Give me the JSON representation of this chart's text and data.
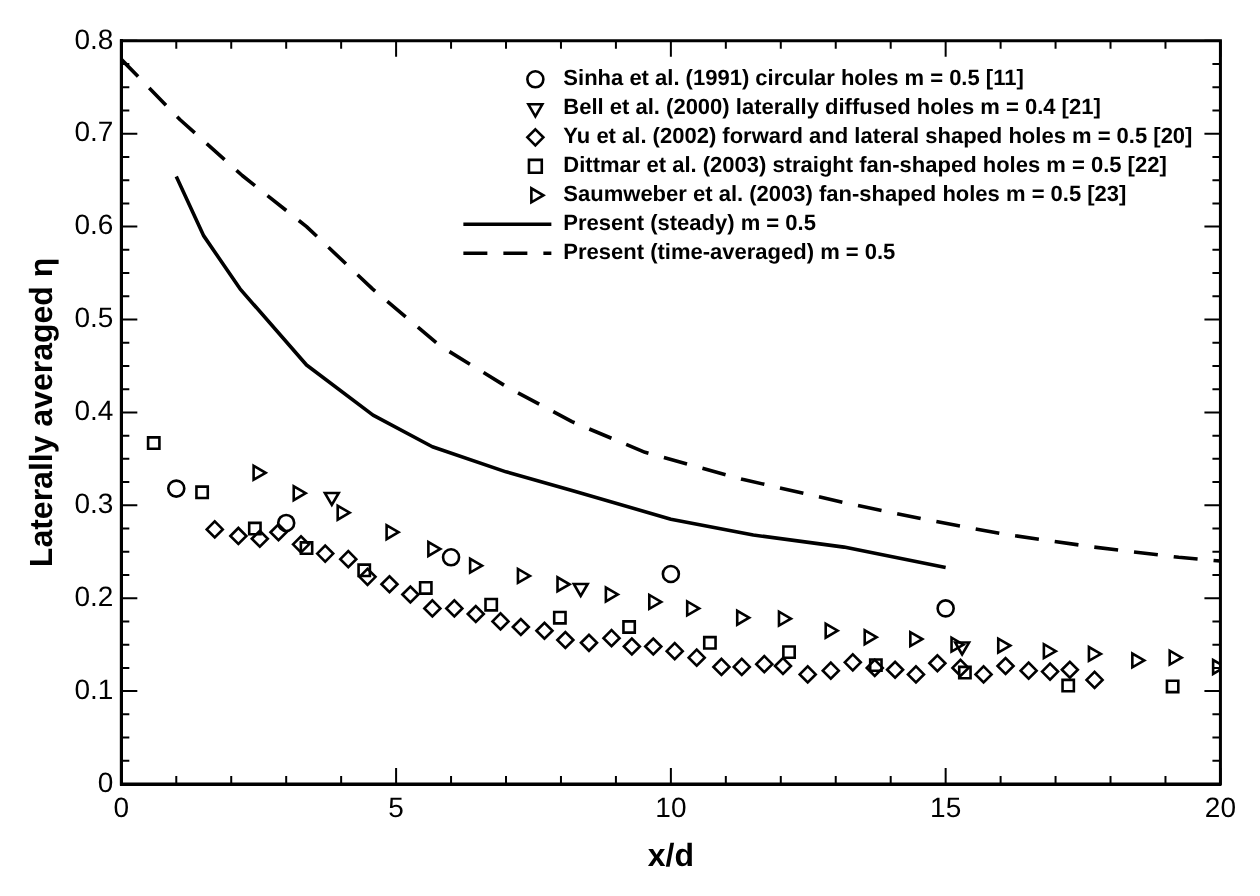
{
  "chart_data": {
    "type": "scatter",
    "xlabel": "x/d",
    "ylabel": "Laterally averaged η",
    "legend": "top right",
    "grid": false,
    "xlim": [
      0,
      20
    ],
    "xticks": [
      0,
      {
        "value": 1,
        "label": null
      },
      {
        "value": 2,
        "label": null
      },
      {
        "value": 3,
        "label": null
      },
      {
        "value": 4,
        "label": null
      },
      5,
      {
        "value": 6,
        "label": null
      },
      {
        "value": 7,
        "label": null
      },
      {
        "value": 8,
        "label": null
      },
      {
        "value": 9,
        "label": null
      },
      10,
      {
        "value": 11,
        "label": null
      },
      {
        "value": 12,
        "label": null
      },
      {
        "value": 13,
        "label": null
      },
      {
        "value": 14,
        "label": null
      },
      15,
      {
        "value": 16,
        "label": null
      },
      {
        "value": 17,
        "label": null
      },
      {
        "value": 18,
        "label": null
      },
      {
        "value": 19,
        "label": null
      },
      20
    ],
    "ylim": [
      0,
      0.8
    ],
    "yticks": [
      0,
      {
        "value": 0.025,
        "label": null
      },
      {
        "value": 0.05,
        "label": null
      },
      {
        "value": 0.075,
        "label": null
      },
      0.1,
      {
        "value": 0.125,
        "label": null
      },
      {
        "value": 0.15,
        "label": null
      },
      {
        "value": 0.175,
        "label": null
      },
      0.2,
      {
        "value": 0.225,
        "label": null
      },
      {
        "value": 0.25,
        "label": null
      },
      {
        "value": 0.275,
        "label": null
      },
      0.3,
      {
        "value": 0.325,
        "label": null
      },
      {
        "value": 0.35,
        "label": null
      },
      {
        "value": 0.375,
        "label": null
      },
      0.4,
      {
        "value": 0.425,
        "label": null
      },
      {
        "value": 0.45,
        "label": null
      },
      {
        "value": 0.475,
        "label": null
      },
      0.5,
      {
        "value": 0.525,
        "label": null
      },
      {
        "value": 0.55,
        "label": null
      },
      {
        "value": 0.575,
        "label": null
      },
      0.6,
      {
        "value": 0.625,
        "label": null
      },
      {
        "value": 0.65,
        "label": null
      },
      {
        "value": 0.675,
        "label": null
      },
      0.7,
      {
        "value": 0.725,
        "label": null
      },
      {
        "value": 0.75,
        "label": null
      },
      {
        "value": 0.775,
        "label": null
      },
      0.8
    ],
    "series": [
      {
        "name": "Sinha et al. (1991) circular holes m = 0.5 [11]",
        "marker": "circle",
        "color": "#000000",
        "x": [
          1.0,
          3.0,
          6.0,
          10.0,
          15.0
        ],
        "values": [
          0.318,
          0.281,
          0.244,
          0.226,
          0.189
        ]
      },
      {
        "name": "Bell et al. (2000) laterally diffused holes m = 0.4 [21]",
        "marker": "triangle",
        "color": "#000000",
        "x": [
          3.83,
          8.36,
          15.3
        ],
        "values": [
          0.309,
          0.211,
          0.148
        ]
      },
      {
        "name": "Yu et al. (2002) forward and lateral shaped holes m = 0.5 [20]",
        "marker": "diamond",
        "color": "#000000",
        "x": [
          1.7,
          2.13,
          2.52,
          2.86,
          3.27,
          3.71,
          4.13,
          4.48,
          4.88,
          5.26,
          5.66,
          6.06,
          6.45,
          6.9,
          7.27,
          7.7,
          8.08,
          8.51,
          8.92,
          9.29,
          9.68,
          10.07,
          10.47,
          10.92,
          11.29,
          11.7,
          12.04,
          12.49,
          12.91,
          13.31,
          13.71,
          14.08,
          14.46,
          14.85,
          15.27,
          15.69,
          16.09,
          16.51,
          16.9,
          17.26,
          17.71
        ],
        "values": [
          0.274,
          0.267,
          0.264,
          0.271,
          0.258,
          0.248,
          0.242,
          0.223,
          0.215,
          0.204,
          0.189,
          0.189,
          0.183,
          0.175,
          0.169,
          0.165,
          0.155,
          0.152,
          0.157,
          0.148,
          0.148,
          0.143,
          0.136,
          0.126,
          0.126,
          0.129,
          0.127,
          0.118,
          0.122,
          0.131,
          0.125,
          0.123,
          0.118,
          0.13,
          0.125,
          0.118,
          0.127,
          0.122,
          0.121,
          0.123,
          0.112
        ]
      },
      {
        "name": "Dittmar et al. (2003) straight fan-shaped holes m = 0.5 [22]",
        "marker": "square",
        "color": "#000000",
        "x": [
          0.59,
          1.47,
          2.43,
          3.37,
          4.42,
          5.54,
          6.73,
          7.98,
          9.24,
          10.71,
          12.15,
          13.73,
          15.35,
          17.23,
          19.13
        ],
        "values": [
          0.367,
          0.314,
          0.275,
          0.254,
          0.23,
          0.211,
          0.193,
          0.179,
          0.169,
          0.152,
          0.142,
          0.128,
          0.12,
          0.106,
          0.105
        ]
      },
      {
        "name": "Saumweber et al. (2003) fan-shaped holes m = 0.5 [23]",
        "marker": "triangle",
        "color": "#000000",
        "x": [
          2.48,
          3.21,
          4.01,
          4.9,
          5.66,
          6.42,
          7.29,
          8.01,
          8.89,
          9.68,
          10.37,
          11.28,
          12.04,
          12.89,
          13.6,
          14.43,
          15.18,
          16.03,
          16.86,
          17.68,
          18.47,
          19.15,
          19.94
        ],
        "values": [
          0.335,
          0.313,
          0.292,
          0.271,
          0.253,
          0.235,
          0.224,
          0.215,
          0.204,
          0.196,
          0.189,
          0.179,
          0.178,
          0.165,
          0.158,
          0.156,
          0.15,
          0.149,
          0.143,
          0.14,
          0.133,
          0.136,
          0.126
        ]
      },
      {
        "name": "Present (steady) m = 0.5",
        "type": "line",
        "marker": "none",
        "line_style": "solid",
        "color": "#000000",
        "x": [
          1.0,
          1.5,
          2.16,
          3.37,
          4.58,
          5.66,
          7.0,
          8.2,
          10.0,
          11.5,
          13.15,
          15.0
        ],
        "values": [
          0.654,
          0.59,
          0.533,
          0.451,
          0.397,
          0.363,
          0.336,
          0.316,
          0.285,
          0.268,
          0.255,
          0.233
        ]
      },
      {
        "name": "Present (time-averaged) m = 0.5",
        "type": "line",
        "marker": "none",
        "line_style": "dashed",
        "color": "#000000",
        "x": [
          0.0,
          1.07,
          2.2,
          3.37,
          4.57,
          5.79,
          7.0,
          8.2,
          9.53,
          11.3,
          13.15,
          14.6,
          16.05,
          17.7,
          19.24,
          20.0
        ],
        "values": [
          0.78,
          0.715,
          0.655,
          0.6,
          0.533,
          0.472,
          0.428,
          0.39,
          0.357,
          0.328,
          0.303,
          0.285,
          0.269,
          0.255,
          0.244,
          0.24
        ]
      }
    ]
  }
}
